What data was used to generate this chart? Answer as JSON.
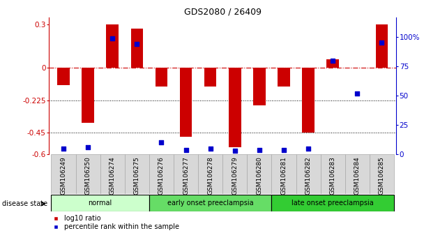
{
  "title": "GDS2080 / 26409",
  "samples": [
    "GSM106249",
    "GSM106250",
    "GSM106274",
    "GSM106275",
    "GSM106276",
    "GSM106277",
    "GSM106278",
    "GSM106279",
    "GSM106280",
    "GSM106281",
    "GSM106282",
    "GSM106283",
    "GSM106284",
    "GSM106285"
  ],
  "log10_ratio": [
    -0.12,
    -0.38,
    0.3,
    0.27,
    -0.13,
    -0.48,
    -0.13,
    -0.55,
    -0.26,
    -0.13,
    -0.45,
    0.06,
    0.0,
    0.3
  ],
  "percentile_rank": [
    5,
    6,
    99,
    94,
    10,
    4,
    5,
    3,
    4,
    4,
    5,
    80,
    52,
    95
  ],
  "groups": [
    {
      "label": "normal",
      "start": 0,
      "end": 4,
      "color": "#ccffcc"
    },
    {
      "label": "early onset preeclampsia",
      "start": 4,
      "end": 9,
      "color": "#66dd66"
    },
    {
      "label": "late onset preeclampsia",
      "start": 9,
      "end": 14,
      "color": "#33cc33"
    }
  ],
  "ylim_left": [
    -0.6,
    0.35
  ],
  "ylim_right": [
    0,
    116.67
  ],
  "yticks_left": [
    -0.6,
    -0.45,
    -0.225,
    0,
    0.3
  ],
  "ytick_labels_left": [
    "-0.6",
    "-0.45",
    "-0.225",
    "0",
    "0.3"
  ],
  "yticks_right": [
    0,
    25,
    50,
    75,
    100
  ],
  "ytick_labels_right": [
    "0",
    "25",
    "50",
    "75",
    "100%"
  ],
  "hline_y": 0,
  "dotted_lines": [
    -0.225,
    -0.45
  ],
  "bar_color": "#cc0000",
  "scatter_color": "#0000cc",
  "bar_width": 0.5,
  "disease_state_label": "disease state",
  "legend_items": [
    {
      "label": "log10 ratio",
      "color": "#cc0000"
    },
    {
      "label": "percentile rank within the sample",
      "color": "#0000cc"
    }
  ],
  "cell_color": "#d8d8d8",
  "cell_edge_color": "#aaaaaa"
}
